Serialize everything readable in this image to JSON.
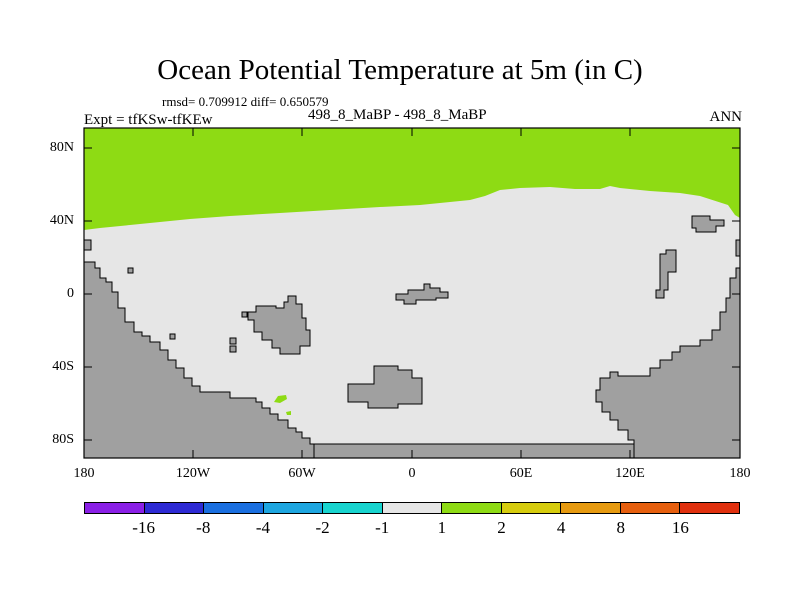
{
  "header": {
    "title": "Ocean Potential Temperature at 5m (in C)",
    "stats": "rmsd= 0.709912 diff= 0.650579",
    "experiment": "Expt = tfKSw-tfKEw",
    "case": "498_8_MaBP - 498_8_MaBP",
    "season": "ANN"
  },
  "axes": {
    "lat_ticks": [
      "80N",
      "40N",
      "0",
      "40S",
      "80S"
    ],
    "lon_ticks": [
      "180",
      "120W",
      "60W",
      "0",
      "60E",
      "120E",
      "180"
    ]
  },
  "legend": {
    "labels": [
      "-16",
      "-8",
      "-4",
      "-2",
      "-1",
      "1",
      "2",
      "4",
      "8",
      "16"
    ],
    "colors": [
      "#8a1fe6",
      "#2d2ad4",
      "#1a6fe0",
      "#1ea6e0",
      "#18d4cf",
      "#e6e6e6",
      "#8edb14",
      "#d6cc0e",
      "#e69a10",
      "#e65f0e",
      "#e0300e"
    ]
  },
  "map_colors": {
    "land": "#a0a0a0",
    "ocean_near_zero": "#e6e6e6",
    "ocean_warm_1_2": "#8edb14"
  }
}
